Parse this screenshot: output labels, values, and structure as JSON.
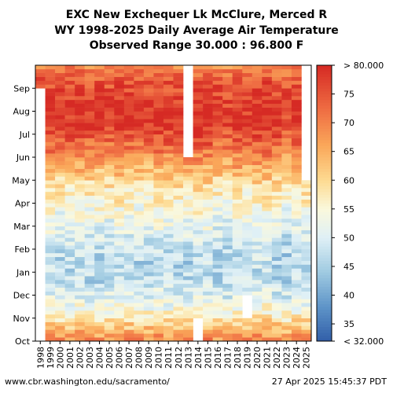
{
  "header": {
    "title_line1": "EXC New Exchequer Lk McClure, Merced R",
    "title_line2": "WY 1998-2025 Daily Average Air Temperature",
    "title_line3": "Observed Range 30.000 : 96.800 F"
  },
  "footer": {
    "source_url": "www.cbr.washington.edu/sacramento/",
    "timestamp": "27 Apr 2025 15:45:37 PDT"
  },
  "colors": {
    "cold": "#3a6db3",
    "cool": "#9cc8e0",
    "mild": "#f7f7f2",
    "warm": "#fdbe72",
    "hot": "#d73027"
  },
  "chart_data": {
    "type": "heatmap",
    "title": "EXC New Exchequer Lk McClure, Merced R WY 1998-2025 Daily Average Air Temperature",
    "x_categories": [
      "1998",
      "1999",
      "2000",
      "2001",
      "2002",
      "2003",
      "2004",
      "2005",
      "2006",
      "2007",
      "2008",
      "2009",
      "2010",
      "2011",
      "2012",
      "2013",
      "2014",
      "2015",
      "2016",
      "2017",
      "2018",
      "2019",
      "2020",
      "2021",
      "2022",
      "2023",
      "2024",
      "2025"
    ],
    "y_ticks": [
      "Oct",
      "Nov",
      "Dec",
      "Jan",
      "Feb",
      "Mar",
      "Apr",
      "May",
      "Jun",
      "Jul",
      "Aug",
      "Sep"
    ],
    "monthly_means": [
      {
        "month": "Oct",
        "value": 64
      },
      {
        "month": "Nov",
        "value": 53
      },
      {
        "month": "Dec",
        "value": 47
      },
      {
        "month": "Jan",
        "value": 46
      },
      {
        "month": "Feb",
        "value": 49
      },
      {
        "month": "Mar",
        "value": 53
      },
      {
        "month": "Apr",
        "value": 57
      },
      {
        "month": "May",
        "value": 64
      },
      {
        "month": "Jun",
        "value": 72
      },
      {
        "month": "Jul",
        "value": 79
      },
      {
        "month": "Aug",
        "value": 78
      },
      {
        "month": "Sep",
        "value": 73
      }
    ],
    "missing": [
      {
        "year": "1998",
        "from_month": "Oct",
        "to_month": "Aug"
      },
      {
        "year": "2013",
        "from_month": "Jun",
        "to_month": "Sep"
      },
      {
        "year": "2014",
        "from_month": "Oct",
        "to_month": "Oct"
      },
      {
        "year": "2019",
        "from_month": "Nov",
        "to_month": "Nov"
      },
      {
        "year": "2025",
        "from_month": "May",
        "to_month": "Sep"
      }
    ],
    "colorbar": {
      "ticks": [
        35,
        40,
        45,
        50,
        55,
        60,
        65,
        70,
        75
      ],
      "min_label": "< 32.000",
      "max_label": "> 80.000",
      "range": [
        32,
        80
      ]
    }
  }
}
